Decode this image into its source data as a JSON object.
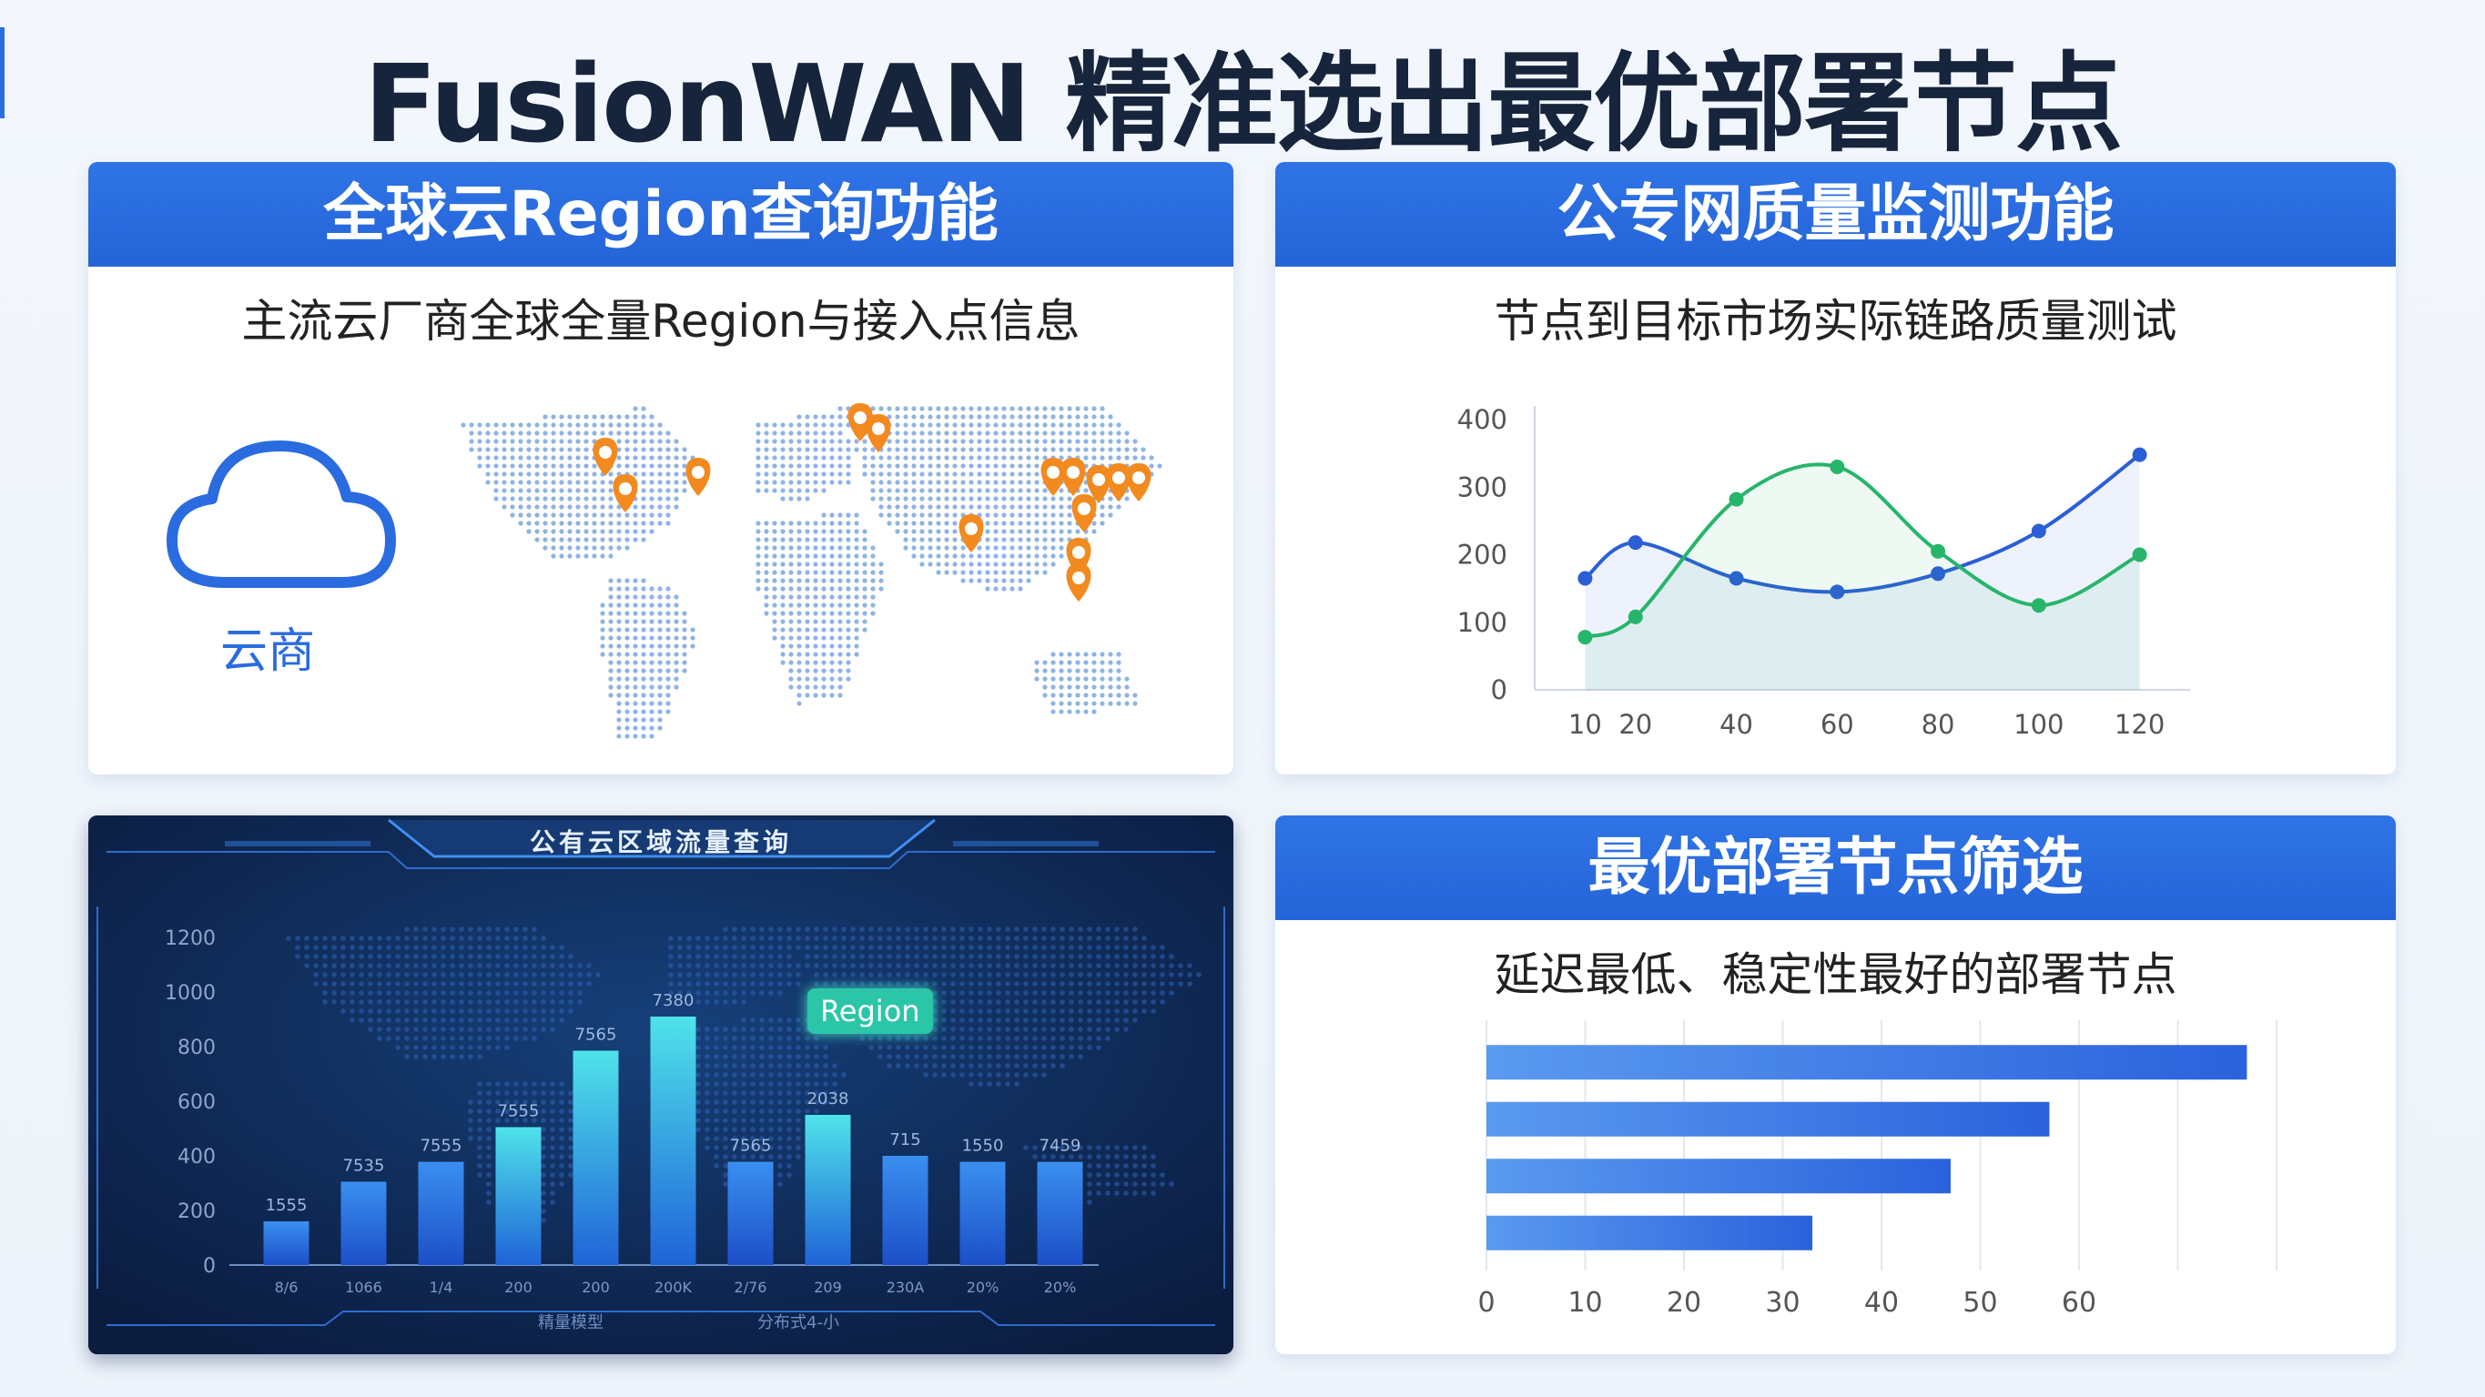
{
  "title": "FusionWAN 精准选出最优部署节点",
  "panels": {
    "region": {
      "header": "全球云Region查询功能",
      "subtitle": "主流云厂商全球全量Region与接入点信息",
      "cloud_label": "云商"
    },
    "quality": {
      "header": "公专网质量监测功能",
      "subtitle": "节点到目标市场实际链路质量测试"
    },
    "traffic": {
      "header": "公有云区域流量查询",
      "tag": "Region"
    },
    "select": {
      "header": "最优部署节点筛选",
      "subtitle": "延迟最低、稳定性最好的部署节点"
    }
  },
  "chart_data": [
    {
      "type": "line",
      "x": [
        10,
        20,
        40,
        60,
        80,
        100,
        120
      ],
      "xlim": [
        0,
        130
      ],
      "ylim": [
        0,
        400
      ],
      "yticks": [
        0,
        100,
        200,
        300,
        400
      ],
      "series": [
        {
          "color": "#2a5fd6",
          "values": [
            165,
            218,
            165,
            145,
            172,
            235,
            348
          ]
        },
        {
          "color": "#27b56a",
          "values": [
            78,
            108,
            282,
            330,
            205,
            125,
            200
          ]
        }
      ]
    },
    {
      "type": "bar",
      "ylim": [
        0,
        1200
      ],
      "yticks": [
        0,
        200,
        400,
        600,
        800,
        1000,
        1200
      ],
      "values": [
        160,
        305,
        378,
        505,
        785,
        910,
        378,
        550,
        400,
        378,
        378
      ],
      "data_labels": [
        "1555",
        "7535",
        "7555",
        "7555",
        "7565",
        "7380",
        "7565",
        "2038",
        "715",
        "1550",
        "7459"
      ],
      "categories": [
        "8/6",
        "1066",
        "1/4",
        "200",
        "200",
        "200K",
        "2/76",
        "209",
        "230A",
        "20%",
        "20%"
      ],
      "bottom_labels": [
        "精量模型",
        "分布式4-小"
      ]
    },
    {
      "type": "bar",
      "orientation": "horizontal",
      "values": [
        77,
        57,
        47,
        33
      ],
      "xlim": [
        0,
        80
      ],
      "xticks": [
        0,
        10,
        20,
        30,
        40,
        50,
        60
      ]
    }
  ],
  "colors": {
    "accent": "#2a6be0",
    "header_blue": "#2766da",
    "pin_orange": "#f28a1f",
    "dark_bg": "#0b1c3f",
    "bar_cyan": "#3fd3e6"
  },
  "icons": [
    "cloud-icon",
    "location-pin-icon",
    "world-map-icon"
  ]
}
